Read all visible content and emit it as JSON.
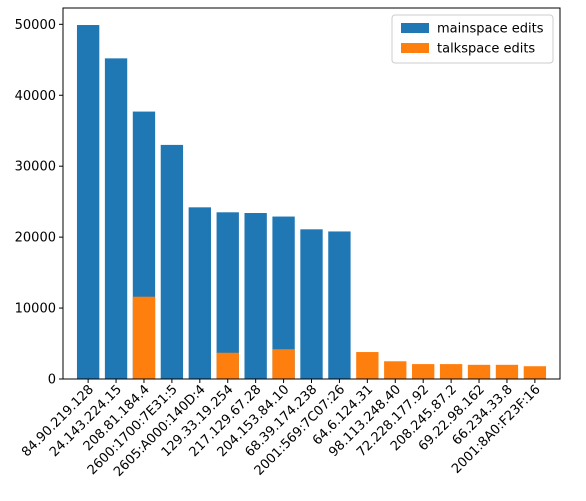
{
  "chart_data": {
    "type": "bar",
    "stacked": false,
    "categories": [
      "84.90.219.128",
      "24.143.224.15",
      "208.81.184.4",
      "2600:1700:7E31:5",
      "2605:A000:140D:4",
      "129.33.19.254",
      "217.129.67.28",
      "204.153.84.10",
      "68.39.174.238",
      "2001:569:7C07:26",
      "64.6.124.31",
      "98.113.248.40",
      "72.228.177.92",
      "208.245.87.2",
      "69.22.98.162",
      "66.234.33.8",
      "2001:8A0:F23F:16"
    ],
    "series": [
      {
        "name": "mainspace edits",
        "color": "#1f77b4",
        "values": [
          49900,
          45200,
          37700,
          33000,
          24200,
          23500,
          23400,
          22900,
          21100,
          20800,
          0,
          0,
          0,
          0,
          0,
          0,
          0
        ]
      },
      {
        "name": "talkspace edits",
        "color": "#ff7f0e",
        "values": [
          0,
          0,
          11600,
          0,
          0,
          3700,
          0,
          4200,
          0,
          0,
          3800,
          2500,
          2100,
          2100,
          2000,
          2000,
          1800
        ]
      }
    ],
    "ylim": [
      0,
      52300
    ],
    "yticks": [
      0,
      10000,
      20000,
      30000,
      40000,
      50000
    ],
    "ytick_labels": [
      "0",
      "10000",
      "20000",
      "30000",
      "40000",
      "50000"
    ],
    "legend_position": "top-right",
    "grid": false
  }
}
